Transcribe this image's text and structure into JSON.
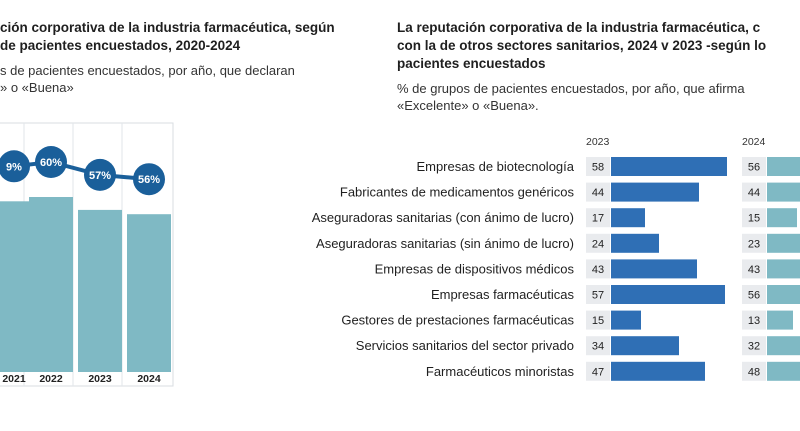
{
  "left_panel": {
    "title_line1": "ción corporativa de la industria farmacéutica, según",
    "title_line2": "de pacientes encuestados, 2020-2024",
    "subtitle_line1": "s de pacientes encuestados, por año, que declaran",
    "subtitle_line2": "» o «Buena»"
  },
  "right_panel": {
    "title_line1": "La reputación corporativa de la industria farmacéutica, c",
    "title_line2": "con la de otros sectores sanitarios, 2024 v 2023 -según lo",
    "title_line3": "pacientes encuestados",
    "subtitle_line1": "% de grupos de pacientes encuestados, por año, que afirma",
    "subtitle_line2": "«Excelente» o «Buena»."
  },
  "colors": {
    "left_bar": "#7fb9c4",
    "line": "#1a5f9a",
    "circle": "#1a5f9a",
    "bar_2023": "#2f6fb5",
    "bar_2024": "#7fb9c4",
    "value_box": "#e9ebee"
  },
  "chart_data": [
    {
      "type": "bar",
      "categories": [
        "2021",
        "2022",
        "2023",
        "2024"
      ],
      "values": [
        59,
        60,
        57,
        56
      ],
      "labels": [
        "9%",
        "60%",
        "57%",
        "56%"
      ],
      "ylim": [
        0,
        100
      ]
    },
    {
      "type": "bar",
      "orientation": "horizontal",
      "categories": [
        "Empresas de biotecnología",
        "Fabricantes de medicamentos genéricos",
        "Aseguradoras sanitarias (con ánimo de lucro)",
        "Aseguradoras sanitarias (sin ánimo de lucro)",
        "Empresas de dispositivos médicos",
        "Empresas farmacéuticas",
        "Gestores de prestaciones farmacéuticas",
        "Servicios sanitarios del sector privado",
        "Farmacéuticos minoristas"
      ],
      "series": [
        {
          "name": "2023",
          "values": [
            58,
            44,
            17,
            24,
            43,
            57,
            15,
            34,
            47
          ]
        },
        {
          "name": "2024",
          "values": [
            56,
            44,
            15,
            23,
            43,
            56,
            13,
            32,
            48
          ]
        }
      ],
      "xlim": [
        0,
        60
      ]
    }
  ]
}
